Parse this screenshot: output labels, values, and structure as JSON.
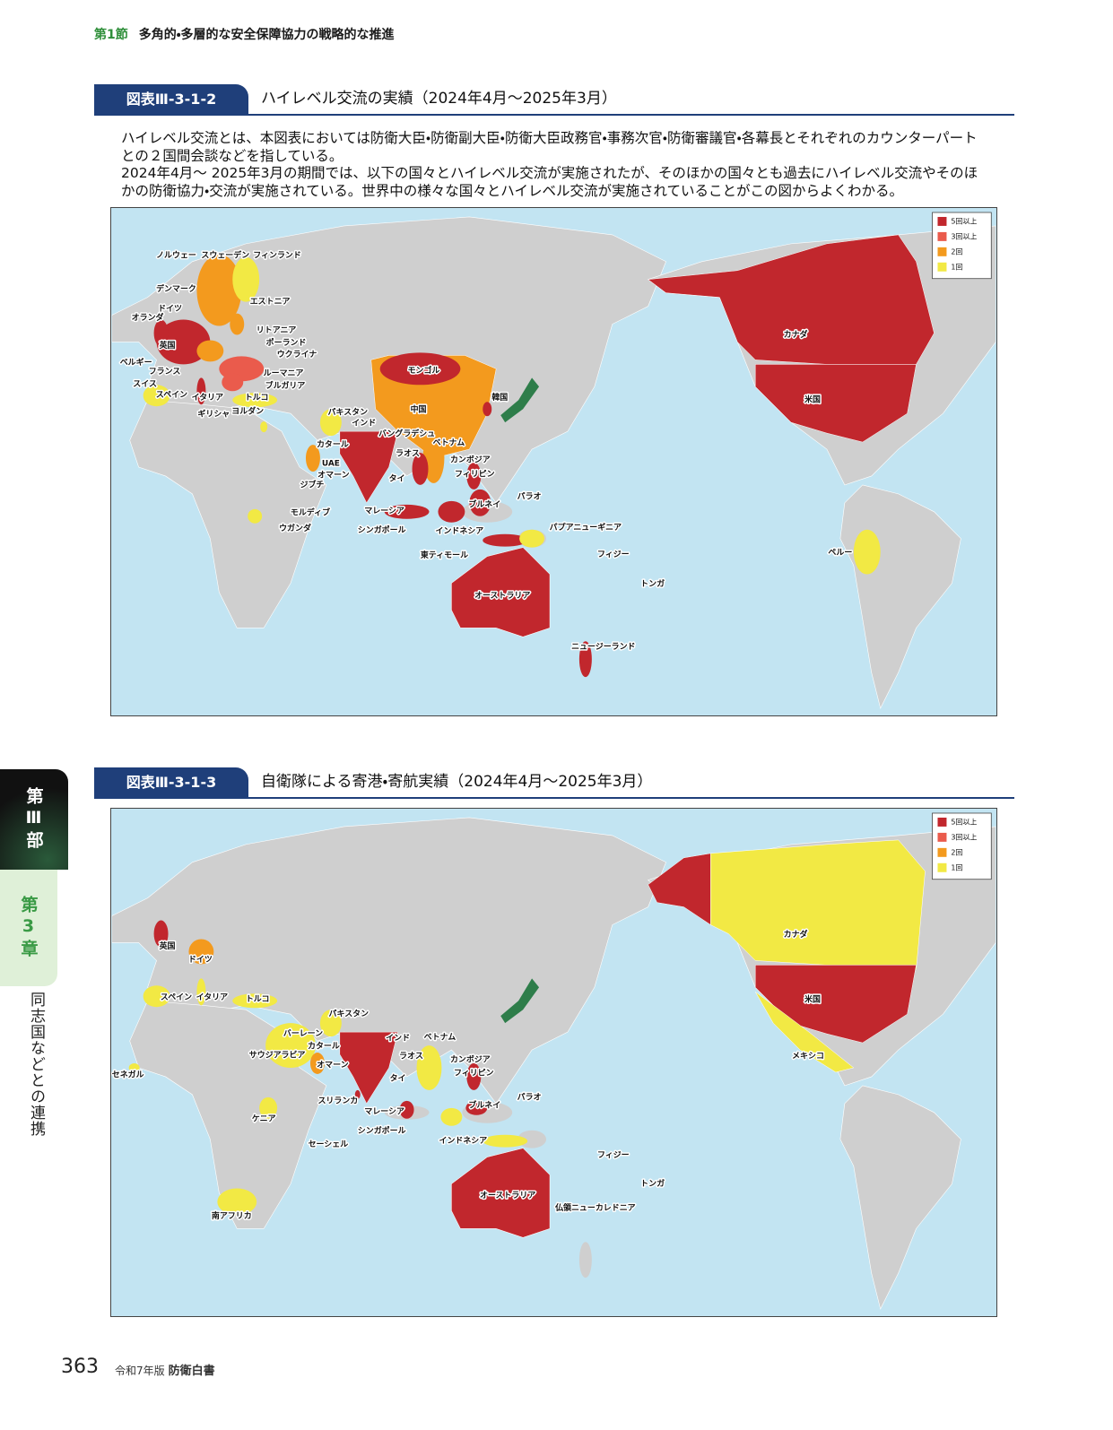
{
  "header": {
    "section": "第1節",
    "title": "多角的・多層的な安全保障協力の戦略的な推進"
  },
  "side_tab": {
    "part": "第Ⅲ部",
    "chapter": "第3章",
    "title": "同志国などとの連携"
  },
  "figures": [
    {
      "number": "図表Ⅲ-3-1-2",
      "title": "ハイレベル交流の実績（2024年4月～2025年3月）",
      "description": [
        "ハイレベル交流とは、本図表においては防衛大臣・防衛副大臣・防衛大臣政務官・事務次官・防衛審議官・各幕長とそれぞれのカウンターパートとの２国間会談などを指している。",
        "2024年4月～ 2025年3月の期間では、以下の国々とハイレベル交流が実施されたが、そのほかの国々とも過去にハイレベル交流やそのほかの防衛協力・交流が実施されている。世界中の様々な国々とハイレベル交流が実施されていることがこの図からよくわかる。"
      ],
      "legend": [
        {
          "label": "5回以上",
          "color": "#c1272d"
        },
        {
          "label": "3回以上",
          "color": "#ea5b4c"
        },
        {
          "label": "2回",
          "color": "#f39a1e"
        },
        {
          "label": "1回",
          "color": "#f2e944"
        }
      ],
      "labels": [
        "ノルウェー",
        "スウェーデン",
        "フィンランド",
        "デンマーク",
        "エストニア",
        "ドイツ",
        "オランダ",
        "リトアニア",
        "英国",
        "ポーランド",
        "ベルギー",
        "ウクライナ",
        "フランス",
        "ルーマニア",
        "スイス",
        "ブルガリア",
        "スペイン",
        "イタリア",
        "トルコ",
        "ギリシャ",
        "ヨルダン",
        "モンゴル",
        "韓国",
        "中国",
        "パキスタン",
        "インド",
        "バングラデシュ",
        "カタール",
        "ベトナム",
        "ラオス",
        "カンボジア",
        "UAE",
        "タイ",
        "フィリピン",
        "オマーン",
        "ジブチ",
        "パラオ",
        "モルディブ",
        "マレーシア",
        "ブルネイ",
        "シンガポール",
        "インドネシア",
        "パプアニューギニア",
        "ウガンダ",
        "東ティモール",
        "フィジー",
        "トンガ",
        "オーストラリア",
        "ニュージーランド",
        "カナダ",
        "米国",
        "ペルー"
      ]
    },
    {
      "number": "図表Ⅲ-3-1-3",
      "title": "自衛隊による寄港・寄航実績（2024年4月～2025年3月）",
      "legend": [
        {
          "label": "5回以上",
          "color": "#c1272d"
        },
        {
          "label": "3回以上",
          "color": "#ea5b4c"
        },
        {
          "label": "2回",
          "color": "#f39a1e"
        },
        {
          "label": "1回",
          "color": "#f2e944"
        }
      ],
      "labels": [
        "英国",
        "ドイツ",
        "スペイン",
        "イタリア",
        "トルコ",
        "パキスタン",
        "バーレーン",
        "カタール",
        "サウジアラビア",
        "オマーン",
        "インド",
        "ベトナム",
        "ラオス",
        "カンボジア",
        "タイ",
        "フィリピン",
        "パラオ",
        "スリランカ",
        "マレーシア",
        "ブルネイ",
        "シンガポール",
        "インドネシア",
        "セネガル",
        "ケニア",
        "セーシェル",
        "フィジー",
        "トンガ",
        "オーストラリア",
        "仏領ニューカレドニア",
        "南アフリカ",
        "カナダ",
        "米国",
        "メキシコ"
      ]
    }
  ],
  "footer": {
    "page": "363",
    "edition": "令和7年版",
    "book": "防衛白書"
  }
}
